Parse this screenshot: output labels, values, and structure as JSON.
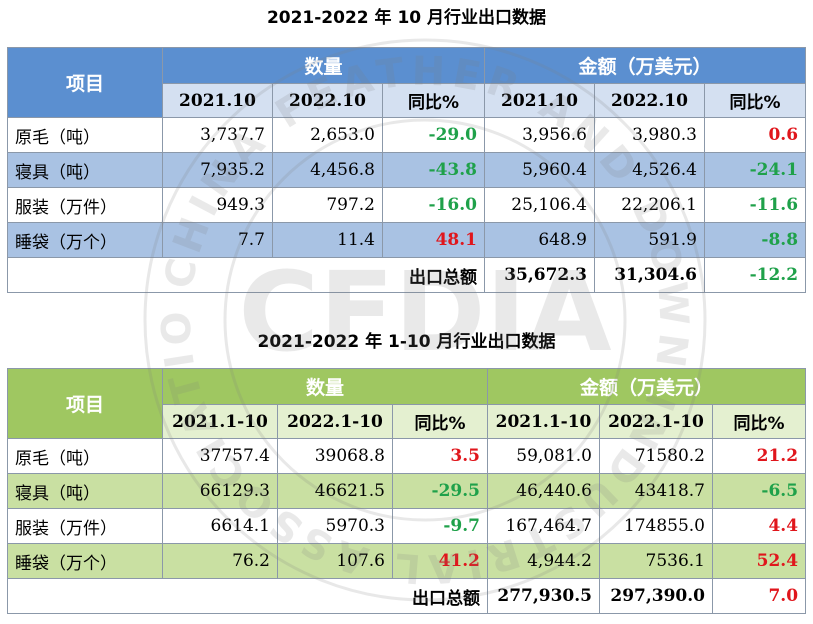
{
  "table1": {
    "title": "2021-2022 年 10 月行业出口数据",
    "item_header": "项目",
    "group_quantity": "数量",
    "group_amount": "金额（万美元）",
    "subheaders": [
      "2021.10",
      "2022.10",
      "同比%",
      "2021.10",
      "2022.10",
      "同比%"
    ],
    "rows": [
      {
        "item": "原毛（吨）",
        "q1": "3,737.7",
        "q2": "2,653.0",
        "qpct": "-29.0",
        "a1": "3,956.6",
        "a2": "3,980.3",
        "apct": "0.6"
      },
      {
        "item": "寝具（吨）",
        "q1": "7,935.2",
        "q2": "4,456.8",
        "qpct": "-43.8",
        "a1": "5,960.4",
        "a2": "4,526.4",
        "apct": "-24.1"
      },
      {
        "item": "服装（万件）",
        "q1": "949.3",
        "q2": "797.2",
        "qpct": "-16.0",
        "a1": "25,106.4",
        "a2": "22,206.1",
        "apct": "-11.6"
      },
      {
        "item": "睡袋（万个）",
        "q1": "7.7",
        "q2": "11.4",
        "qpct": "48.1",
        "a1": "648.9",
        "a2": "591.9",
        "apct": "-8.8"
      }
    ],
    "total": {
      "label": "出口总额",
      "a1": "35,672.3",
      "a2": "31,304.6",
      "apct": "-12.2"
    }
  },
  "table2": {
    "title": "2021-2022 年 1-10 月行业出口数据",
    "item_header": "项目",
    "group_quantity": "数量",
    "group_amount": "金额（万美元）",
    "subheaders": [
      "2021.1-10",
      "2022.1-10",
      "同比%",
      "2021.1-10",
      "2022.1-10",
      "同比%"
    ],
    "rows": [
      {
        "item": "原毛（吨）",
        "q1": "37757.4",
        "q2": "39068.8",
        "qpct": "3.5",
        "a1": "59,081.0",
        "a2": "71580.2",
        "apct": "21.2"
      },
      {
        "item": "寝具（吨）",
        "q1": "66129.3",
        "q2": "46621.5",
        "qpct": "-29.5",
        "a1": "46,440.6",
        "a2": "43418.7",
        "apct": "-6.5"
      },
      {
        "item": "服装（万件）",
        "q1": "6614.1",
        "q2": "5970.3",
        "qpct": "-9.7",
        "a1": "167,464.7",
        "a2": "174855.0",
        "apct": "4.4"
      },
      {
        "item": "睡袋（万个）",
        "q1": "76.2",
        "q2": "107.6",
        "qpct": "41.2",
        "a1": "4,944.2",
        "a2": "7536.1",
        "apct": "52.4"
      }
    ],
    "total": {
      "label": "出口总额",
      "a1": "277,930.5",
      "a2": "297,390.0",
      "apct": "7.0"
    }
  },
  "colors": {
    "blue_header": "#5b8fd0",
    "blue_subheader": "#d4e0f1",
    "blue_row": "#a9c2e3",
    "green_header": "#9fc761",
    "green_subheader": "#e4f0d0",
    "green_row": "#c9e0a2",
    "positive": "#e0161c",
    "negative": "#1fa14a"
  },
  "watermark": {
    "logo_text": "CFDIA",
    "ring_text": "CHINA FEATHER AND DOWN INDUSTRIAL ASSOCIATION"
  }
}
